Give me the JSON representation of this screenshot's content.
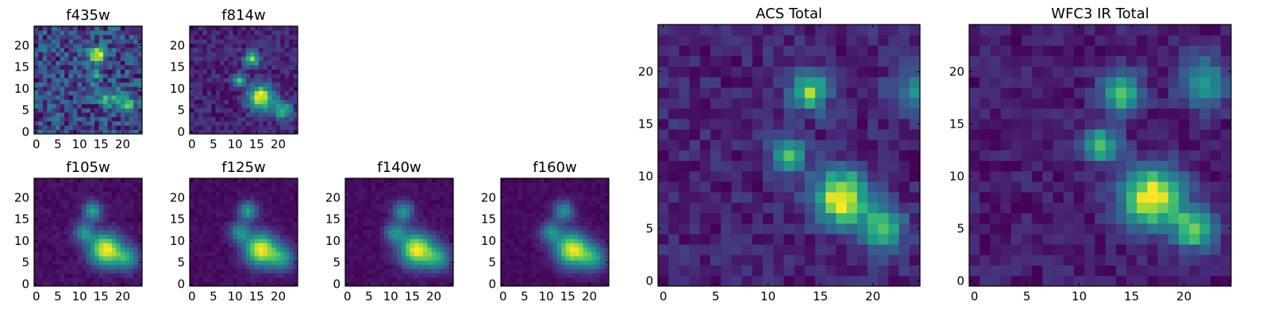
{
  "chart_data": [
    {
      "type": "heatmap",
      "title": "f435w",
      "grid_size": 25,
      "colormap": "viridis",
      "xticks": [
        "0",
        "5",
        "10",
        "15",
        "20"
      ],
      "yticks": [
        "0",
        "5",
        "10",
        "15",
        "20"
      ],
      "xlim": [
        -0.5,
        24.5
      ],
      "ylim": [
        -0.5,
        24.5
      ],
      "sources": [
        {
          "x": 14,
          "y": 18,
          "amp": 0.6,
          "sigma": 1.3
        },
        {
          "x": 13,
          "y": 13,
          "amp": 0.3,
          "sigma": 1.2
        },
        {
          "x": 17,
          "y": 8,
          "amp": 0.35,
          "sigma": 1.5
        },
        {
          "x": 21,
          "y": 6,
          "amp": 0.45,
          "sigma": 1.3
        }
      ],
      "background": 0.35,
      "noise": 0.35
    },
    {
      "type": "heatmap",
      "title": "f814w",
      "grid_size": 25,
      "colormap": "viridis",
      "xticks": [
        "0",
        "5",
        "10",
        "15",
        "20"
      ],
      "yticks": [
        "0",
        "5",
        "10",
        "15",
        "20"
      ],
      "xlim": [
        -0.5,
        24.5
      ],
      "ylim": [
        -0.5,
        24.5
      ],
      "sources": [
        {
          "x": 14,
          "y": 17,
          "amp": 0.7,
          "sigma": 1.2
        },
        {
          "x": 11,
          "y": 12,
          "amp": 0.55,
          "sigma": 1.1
        },
        {
          "x": 16,
          "y": 8,
          "amp": 0.9,
          "sigma": 2.0
        },
        {
          "x": 21,
          "y": 5,
          "amp": 0.6,
          "sigma": 1.5
        }
      ],
      "background": 0.25,
      "noise": 0.2
    },
    {
      "type": "heatmap",
      "title": "f105w",
      "grid_size": 25,
      "colormap": "viridis",
      "xticks": [
        "0",
        "5",
        "10",
        "15",
        "20"
      ],
      "yticks": [
        "0",
        "5",
        "10",
        "15",
        "20"
      ],
      "xlim": [
        -0.5,
        24.5
      ],
      "ylim": [
        -0.5,
        24.5
      ],
      "sources": [
        {
          "x": 13,
          "y": 17,
          "amp": 0.55,
          "sigma": 1.5
        },
        {
          "x": 11,
          "y": 12,
          "amp": 0.45,
          "sigma": 1.6
        },
        {
          "x": 16,
          "y": 8,
          "amp": 0.95,
          "sigma": 2.6
        },
        {
          "x": 21,
          "y": 6,
          "amp": 0.5,
          "sigma": 2.0
        }
      ],
      "background": 0.3,
      "noise": 0.08
    },
    {
      "type": "heatmap",
      "title": "f125w",
      "grid_size": 25,
      "colormap": "viridis",
      "xticks": [
        "0",
        "5",
        "10",
        "15",
        "20"
      ],
      "yticks": [
        "0",
        "5",
        "10",
        "15",
        "20"
      ],
      "xlim": [
        -0.5,
        24.5
      ],
      "ylim": [
        -0.5,
        24.5
      ],
      "sources": [
        {
          "x": 13,
          "y": 17,
          "amp": 0.55,
          "sigma": 1.5
        },
        {
          "x": 11,
          "y": 12,
          "amp": 0.45,
          "sigma": 1.6
        },
        {
          "x": 16,
          "y": 8,
          "amp": 0.95,
          "sigma": 2.6
        },
        {
          "x": 21,
          "y": 6,
          "amp": 0.5,
          "sigma": 2.0
        }
      ],
      "background": 0.3,
      "noise": 0.07
    },
    {
      "type": "heatmap",
      "title": "f140w",
      "grid_size": 25,
      "colormap": "viridis",
      "xticks": [
        "0",
        "5",
        "10",
        "15",
        "20"
      ],
      "yticks": [
        "0",
        "5",
        "10",
        "15",
        "20"
      ],
      "xlim": [
        -0.5,
        24.5
      ],
      "ylim": [
        -0.5,
        24.5
      ],
      "sources": [
        {
          "x": 13,
          "y": 17,
          "amp": 0.5,
          "sigma": 1.6
        },
        {
          "x": 11,
          "y": 12,
          "amp": 0.45,
          "sigma": 1.7
        },
        {
          "x": 16,
          "y": 8,
          "amp": 0.95,
          "sigma": 2.7
        },
        {
          "x": 21,
          "y": 6,
          "amp": 0.5,
          "sigma": 2.1
        }
      ],
      "background": 0.3,
      "noise": 0.07
    },
    {
      "type": "heatmap",
      "title": "f160w",
      "grid_size": 25,
      "colormap": "viridis",
      "xticks": [
        "0",
        "5",
        "10",
        "15",
        "20"
      ],
      "yticks": [
        "0",
        "5",
        "10",
        "15",
        "20"
      ],
      "xlim": [
        -0.5,
        24.5
      ],
      "ylim": [
        -0.5,
        24.5
      ],
      "sources": [
        {
          "x": 14,
          "y": 17,
          "amp": 0.5,
          "sigma": 1.6
        },
        {
          "x": 11,
          "y": 12,
          "amp": 0.45,
          "sigma": 1.7
        },
        {
          "x": 16,
          "y": 8,
          "amp": 0.95,
          "sigma": 2.7
        },
        {
          "x": 21,
          "y": 6,
          "amp": 0.5,
          "sigma": 2.1
        }
      ],
      "background": 0.3,
      "noise": 0.06
    },
    {
      "type": "heatmap",
      "title": "ACS Total",
      "grid_size": 25,
      "colormap": "viridis",
      "xticks": [
        "0",
        "5",
        "10",
        "15",
        "20"
      ],
      "yticks": [
        "0",
        "5",
        "10",
        "15",
        "20"
      ],
      "xlim": [
        -0.5,
        24.5
      ],
      "ylim": [
        -0.5,
        24.5
      ],
      "sources": [
        {
          "x": 14,
          "y": 18,
          "amp": 0.7,
          "sigma": 1.2
        },
        {
          "x": 12,
          "y": 12,
          "amp": 0.55,
          "sigma": 1.1
        },
        {
          "x": 17,
          "y": 8,
          "amp": 0.9,
          "sigma": 1.8
        },
        {
          "x": 21,
          "y": 5,
          "amp": 0.65,
          "sigma": 1.4
        },
        {
          "x": 24,
          "y": 18,
          "amp": 0.35,
          "sigma": 1.5
        }
      ],
      "background": 0.3,
      "noise": 0.18
    },
    {
      "type": "heatmap",
      "title": "WFC3 IR Total",
      "grid_size": 25,
      "colormap": "viridis",
      "xticks": [
        "0",
        "5",
        "10",
        "15",
        "20"
      ],
      "yticks": [
        "0",
        "5",
        "10",
        "15",
        "20"
      ],
      "xlim": [
        -0.5,
        24.5
      ],
      "ylim": [
        -0.5,
        24.5
      ],
      "sources": [
        {
          "x": 14,
          "y": 18,
          "amp": 0.65,
          "sigma": 1.3
        },
        {
          "x": 12,
          "y": 13,
          "amp": 0.55,
          "sigma": 1.2
        },
        {
          "x": 17,
          "y": 8,
          "amp": 0.85,
          "sigma": 2.0
        },
        {
          "x": 21,
          "y": 5,
          "amp": 0.65,
          "sigma": 1.3
        },
        {
          "x": 22,
          "y": 19,
          "amp": 0.45,
          "sigma": 1.6
        }
      ],
      "background": 0.3,
      "noise": 0.14
    }
  ]
}
